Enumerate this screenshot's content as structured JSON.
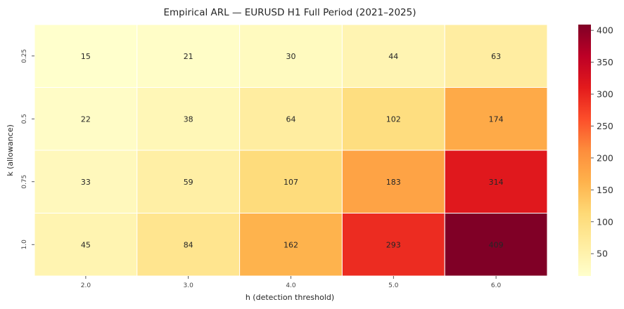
{
  "chart_data": {
    "type": "heatmap",
    "title": "Empirical ARL — EURUSD H1 Full Period (2021–2025)",
    "xlabel": "h  (detection threshold)",
    "ylabel": "k  (allowance)",
    "x_categories": [
      "2.0",
      "3.0",
      "4.0",
      "5.0",
      "6.0"
    ],
    "y_categories": [
      "0.25",
      "0.5",
      "0.75",
      "1.0"
    ],
    "values": [
      [
        15,
        21,
        30,
        44,
        63
      ],
      [
        22,
        38,
        64,
        102,
        174
      ],
      [
        33,
        59,
        107,
        183,
        314
      ],
      [
        45,
        84,
        162,
        293,
        409
      ]
    ],
    "value_labels": [
      [
        "15",
        "21",
        "30",
        "44",
        "63"
      ],
      [
        "22",
        "38",
        "64",
        "102",
        "174"
      ],
      [
        "33",
        "59",
        "107",
        "183",
        "314"
      ],
      [
        "45",
        "84",
        "162",
        "293",
        "409"
      ]
    ],
    "colorbar": {
      "min": 15,
      "max": 409,
      "ticks": [
        50,
        100,
        150,
        200,
        250,
        300,
        350,
        400
      ],
      "tick_labels": [
        "50",
        "100",
        "150",
        "200",
        "250",
        "300",
        "350",
        "400"
      ],
      "colormap": "YlOrRd"
    },
    "grid": false
  }
}
